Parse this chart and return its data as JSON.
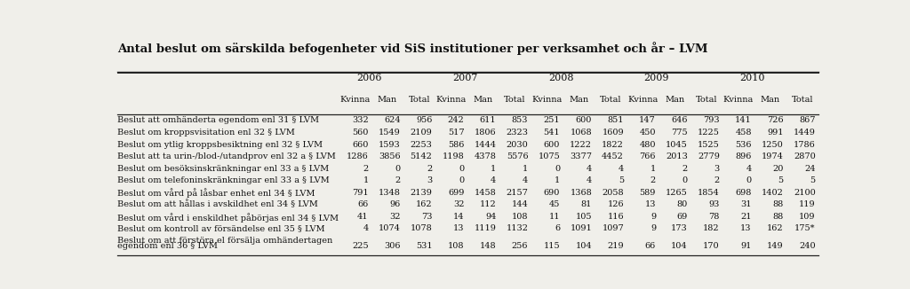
{
  "title": "Antal beslut om särskilda befogenheter vid SiS institutioner per verksamhet och år – LVM",
  "years": [
    "2006",
    "2007",
    "2008",
    "2009",
    "2010"
  ],
  "subheaders": [
    "Kvinna",
    "Man",
    "Total"
  ],
  "rows": [
    {
      "label": "Beslut att omhänderta egendom enl 31 § LVM",
      "data": [
        332,
        624,
        956,
        242,
        611,
        853,
        251,
        600,
        851,
        147,
        646,
        793,
        141,
        726,
        867
      ]
    },
    {
      "label": "Beslut om kroppsvisitation enl 32 § LVM",
      "data": [
        560,
        1549,
        2109,
        517,
        1806,
        2323,
        541,
        1068,
        1609,
        450,
        775,
        1225,
        458,
        991,
        1449
      ]
    },
    {
      "label": "Beslut om ytlig kroppsbesiktning enl 32 § LVM",
      "data": [
        660,
        1593,
        2253,
        586,
        1444,
        2030,
        600,
        1222,
        1822,
        480,
        1045,
        1525,
        536,
        1250,
        1786
      ]
    },
    {
      "label": "Beslut att ta urin-/blod-/utandprov enl 32 a § LVM",
      "data": [
        1286,
        3856,
        5142,
        1198,
        4378,
        5576,
        1075,
        3377,
        4452,
        766,
        2013,
        2779,
        896,
        1974,
        2870
      ]
    },
    {
      "label": "Beslut om besöksinskränkningar enl 33 a § LVM",
      "data": [
        2,
        0,
        2,
        0,
        1,
        1,
        0,
        4,
        4,
        1,
        2,
        3,
        4,
        20,
        24
      ]
    },
    {
      "label": "Beslut om telefoninskränkningar enl 33 a § LVM",
      "data": [
        1,
        2,
        3,
        0,
        4,
        4,
        1,
        4,
        5,
        2,
        0,
        2,
        0,
        5,
        5
      ]
    },
    {
      "label": "Beslut om vård på låsbar enhet enl 34 § LVM",
      "data": [
        791,
        1348,
        2139,
        699,
        1458,
        2157,
        690,
        1368,
        2058,
        589,
        1265,
        1854,
        698,
        1402,
        2100
      ]
    },
    {
      "label": "Beslut om att hållas i avskildhet enl 34 § LVM",
      "data": [
        66,
        96,
        162,
        32,
        112,
        144,
        45,
        81,
        126,
        13,
        80,
        93,
        31,
        88,
        119
      ]
    },
    {
      "label": "Beslut om vård i enskildhet påbörjas enl 34 § LVM",
      "data": [
        41,
        32,
        73,
        14,
        94,
        108,
        11,
        105,
        116,
        9,
        69,
        78,
        21,
        88,
        109
      ]
    },
    {
      "label": "Beslut om kontroll av försändelse enl 35 § LVM",
      "data": [
        4,
        1074,
        1078,
        13,
        1119,
        1132,
        6,
        1091,
        1097,
        9,
        173,
        182,
        13,
        162,
        "175*"
      ]
    },
    {
      "label_line1": "Beslut om att förstöra el försälja omhändertagen",
      "label_line2": "egendom enl 36 § LVM",
      "data": [
        225,
        306,
        531,
        108,
        148,
        256,
        115,
        104,
        219,
        66,
        104,
        170,
        91,
        149,
        240
      ]
    }
  ],
  "bg_color": "#f0efea",
  "line_color": "#222222"
}
